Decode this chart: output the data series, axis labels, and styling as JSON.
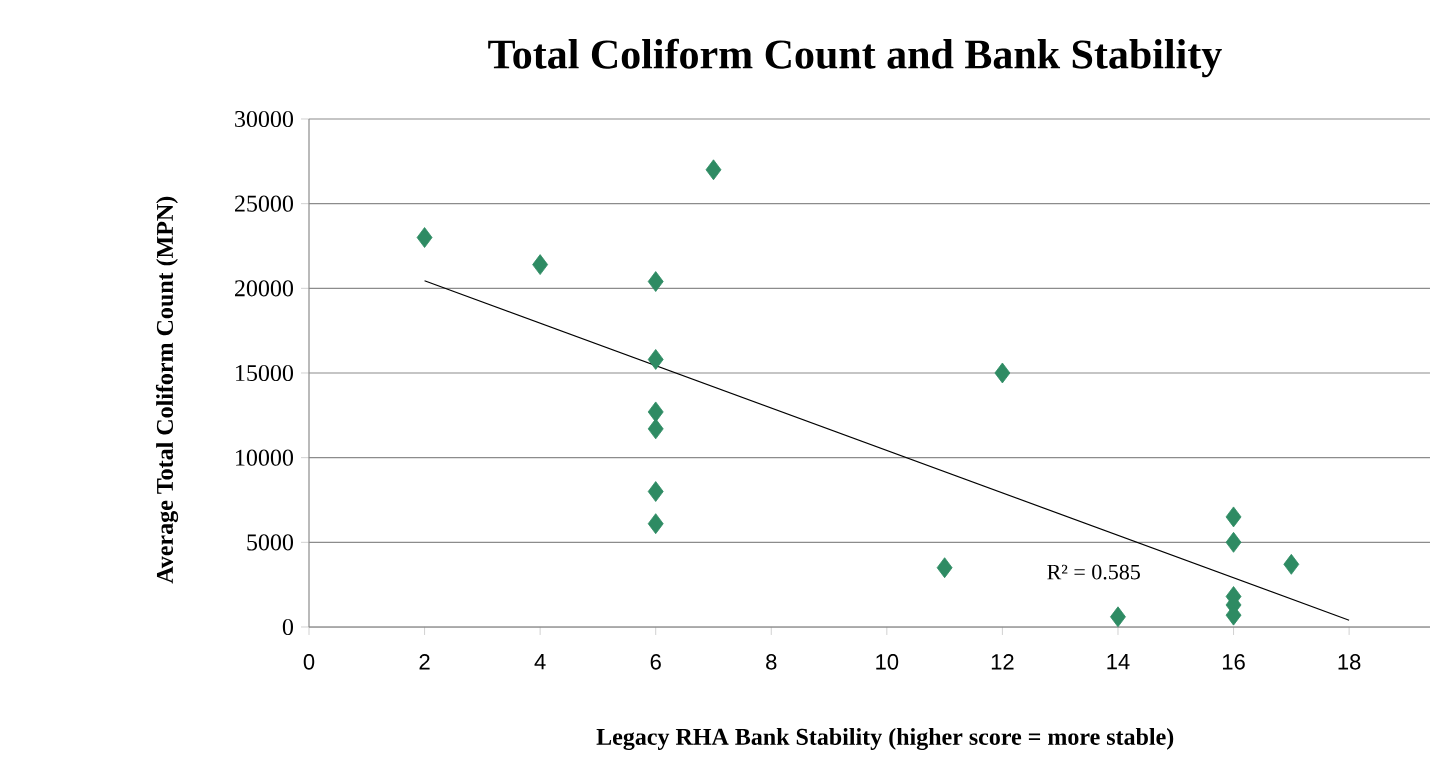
{
  "chart_data": {
    "type": "scatter",
    "title": "Total Coliform Count and Bank Stability",
    "xlabel": "Legacy RHA Bank Stability (higher score = more stable)",
    "ylabel": "Average Total Coliform Count  (MPN)",
    "xlim": [
      0,
      19.4
    ],
    "ylim": [
      0,
      30000
    ],
    "xticks": [
      0,
      2,
      4,
      6,
      8,
      10,
      12,
      14,
      16,
      18
    ],
    "yticks": [
      0,
      5000,
      10000,
      15000,
      20000,
      25000,
      30000
    ],
    "grid": "y",
    "series": [
      {
        "marker": "diamond",
        "color": "#2e8b63",
        "x": [
          2,
          4,
          6,
          6,
          6,
          6,
          6,
          6,
          7,
          11,
          12,
          14,
          16,
          16,
          16,
          16,
          16,
          17
        ],
        "values": [
          23000,
          21400,
          20400,
          15800,
          12700,
          11700,
          8000,
          6100,
          27000,
          3500,
          15000,
          600,
          6500,
          5000,
          1800,
          1300,
          700,
          3700
        ]
      },
      {
        "type": "line",
        "color": "#000000",
        "x": [
          2,
          18
        ],
        "values": [
          20450,
          400
        ]
      }
    ],
    "annotations": [
      "R² = 0.585"
    ]
  }
}
